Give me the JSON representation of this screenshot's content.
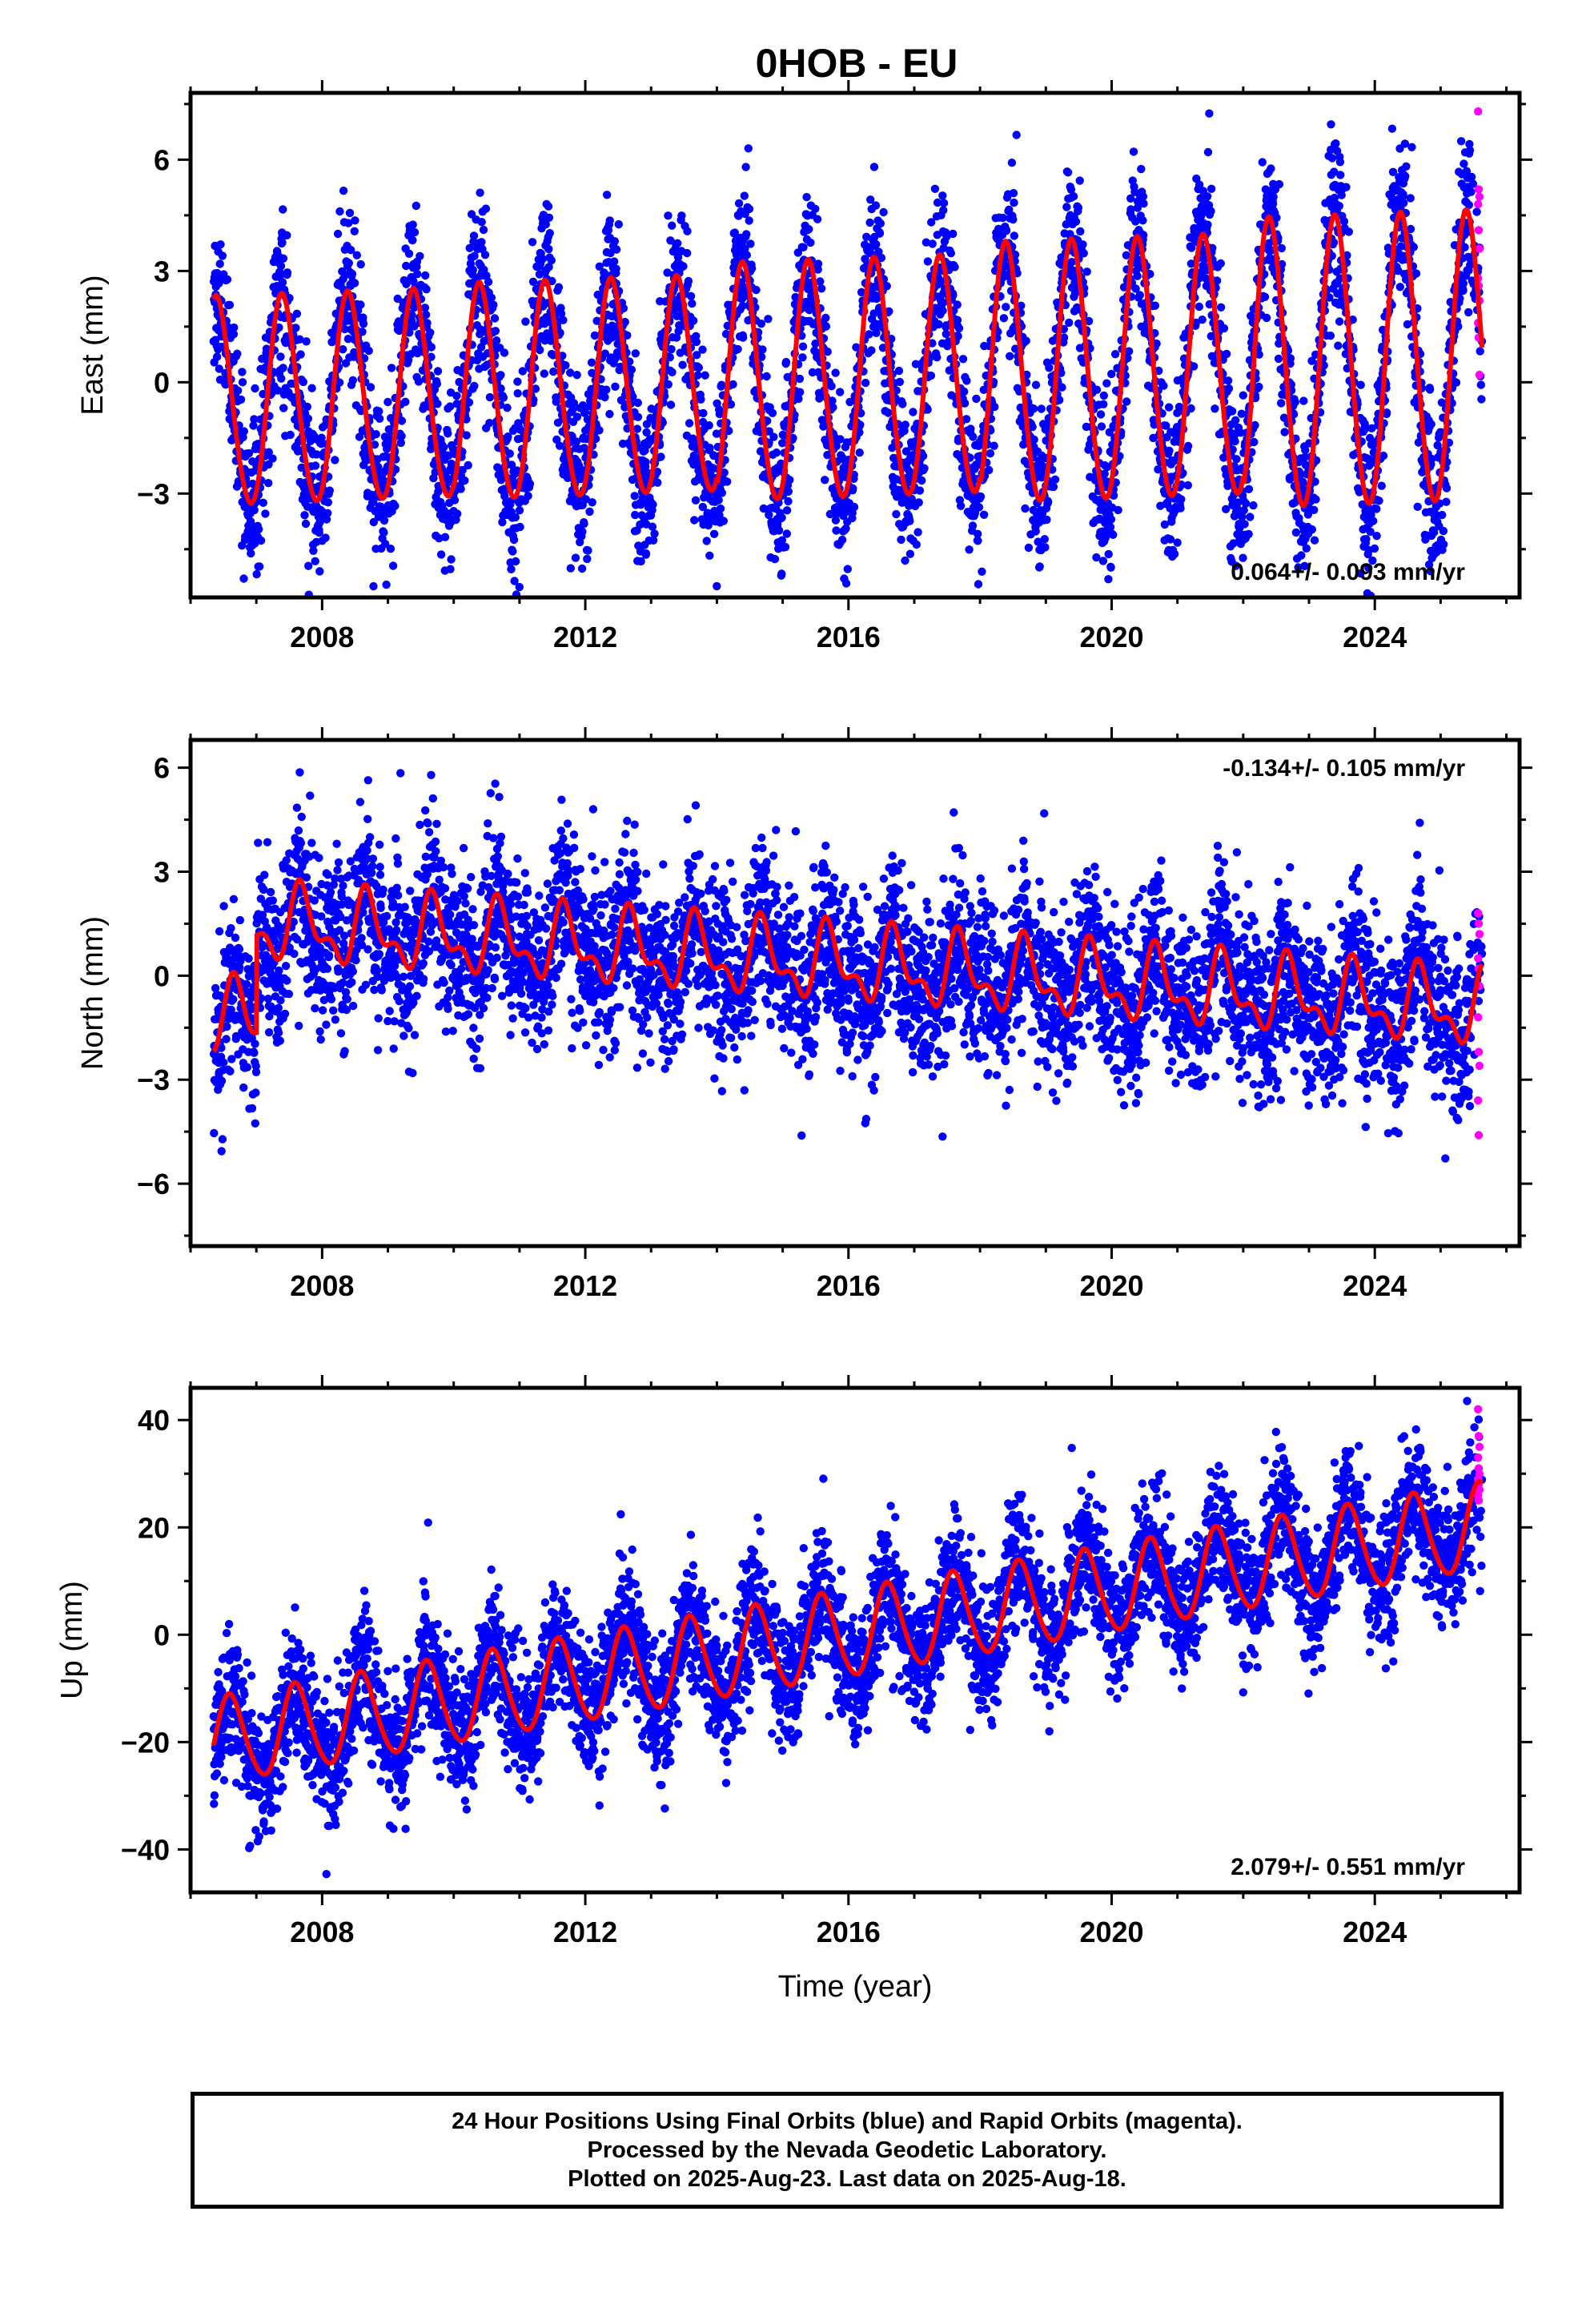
{
  "title": "0HOB - EU",
  "caption": {
    "line1": "24 Hour Positions Using Final Orbits (blue) and Rapid Orbits (magenta).",
    "line2": "Processed by the Nevada Geodetic Laboratory.",
    "line3": "Plotted on 2025-Aug-23. Last data on 2025-Aug-18."
  },
  "colors": {
    "final": "#0000ff",
    "rapid": "#ff00ff",
    "model": "#ff0000",
    "frame": "#000000"
  },
  "chart_data": [
    {
      "type": "scatter",
      "ylabel": "East (mm)",
      "xlabel": "",
      "xlim": [
        2006.0,
        2026.2
      ],
      "ylim": [
        -5.8,
        7.8
      ],
      "xticks": [
        2008,
        2012,
        2016,
        2020,
        2024
      ],
      "xtick_labels": [
        "2008",
        "2012",
        "2016",
        "2020",
        "2024"
      ],
      "yticks": [
        -3,
        0,
        3,
        6
      ],
      "ytick_labels": [
        "−3",
        "0",
        "3",
        "6"
      ],
      "rate": "0.064+/- 0.093 mm/yr",
      "rate_position": "bottom-right",
      "data_start": 2006.35,
      "data_end": 2025.63,
      "rapid_start": 2025.45,
      "series": [
        {
          "kind": "final",
          "model": {
            "offset": 0.0,
            "trend": 0.064,
            "ref_year": 2016,
            "annual_amp": [
              2.8,
              2.9,
              3.2,
              3.5,
              3.9
            ],
            "semi_amp": 0.2,
            "phase_year": 2006.4
          },
          "scatter_sd": 1.1,
          "scatter_amp_extra": 0.6
        },
        {
          "kind": "rapid",
          "values": [
            7.3,
            5.2,
            5.0,
            4.8,
            4.1,
            3.6,
            2.8,
            2.6,
            2.2,
            1.6,
            1.2,
            0.2
          ]
        }
      ]
    },
    {
      "type": "scatter",
      "ylabel": "North (mm)",
      "xlabel": "",
      "xlim": [
        2006.0,
        2026.2
      ],
      "ylim": [
        -7.8,
        6.8
      ],
      "xticks": [
        2008,
        2012,
        2016,
        2020,
        2024
      ],
      "xtick_labels": [
        "2008",
        "2012",
        "2016",
        "2020",
        "2024"
      ],
      "yticks": [
        -6,
        -3,
        0,
        3,
        6
      ],
      "ytick_labels": [
        "−6",
        "−3",
        "0",
        "3",
        "6"
      ],
      "rate": "-0.134+/- 0.105 mm/yr",
      "rate_position": "top-right",
      "data_start": 2006.35,
      "data_end": 2025.63,
      "rapid_start": 2025.45,
      "series": [
        {
          "kind": "final",
          "model": {
            "offset": 0.3,
            "trend": -0.134,
            "ref_year": 2016,
            "annual_amp": [
              0.9,
              0.9,
              0.9,
              0.9,
              0.9
            ],
            "semi_amp": 0.5,
            "phase_year": 2006.7,
            "early_offset": -2.8,
            "early_end": 2007.0
          },
          "scatter_sd": 1.2,
          "scatter_amp_extra": 0.3
        },
        {
          "kind": "rapid",
          "values": [
            1.8,
            1.5,
            1.2,
            0.5,
            0.2,
            -0.3,
            -1.2,
            -2.2,
            -2.6,
            -3.6,
            -4.6
          ]
        }
      ]
    },
    {
      "type": "scatter",
      "ylabel": "Up (mm)",
      "xlabel": "Time (year)",
      "xlim": [
        2006.0,
        2026.2
      ],
      "ylim": [
        -48,
        46
      ],
      "xticks": [
        2008,
        2012,
        2016,
        2020,
        2024
      ],
      "xtick_labels": [
        "2008",
        "2012",
        "2016",
        "2020",
        "2024"
      ],
      "yticks": [
        -40,
        -20,
        0,
        20,
        40
      ],
      "ytick_labels": [
        "−40",
        "−20",
        "0",
        "20",
        "40"
      ],
      "rate": "2.079+/- 0.551 mm/yr",
      "rate_position": "bottom-right",
      "data_start": 2006.35,
      "data_end": 2025.63,
      "rapid_start": 2025.45,
      "series": [
        {
          "kind": "final",
          "model": {
            "offset": 0.0,
            "trend": 2.079,
            "ref_year": 2016,
            "annual_amp": [
              8.0,
              8.0,
              8.0,
              8.0,
              8.0
            ],
            "semi_amp": 0.8,
            "phase_year": 2006.6
          },
          "scatter_sd": 6.0,
          "scatter_amp_extra": 3.0
        },
        {
          "kind": "rapid",
          "values": [
            42,
            37,
            35,
            33,
            31,
            30,
            29,
            28,
            27,
            26,
            25
          ]
        }
      ]
    }
  ]
}
